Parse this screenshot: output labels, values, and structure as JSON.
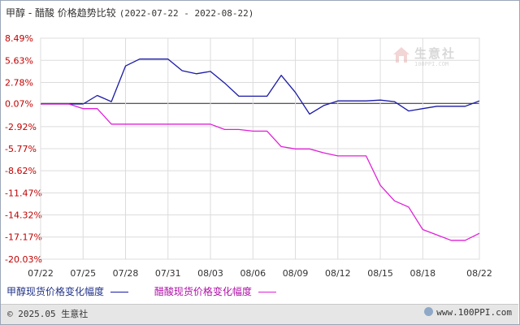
{
  "header": {
    "title": "甲醇 - 醋酸 价格趋势比较",
    "date_range": "(2022-07-22 - 2022-08-22)"
  },
  "watermark": {
    "name": "生意社",
    "url": "100PPI.COM"
  },
  "footer": {
    "copyright": "© 2025.05 生意社",
    "site": "www.100PPI.com"
  },
  "colors": {
    "series1": "#1a1aa6",
    "series2": "#e020d8",
    "grid": "#dcdcdc",
    "axis_label": "#c00000",
    "zero_line": "#222222"
  },
  "chart_data": {
    "type": "line",
    "x_tick_labels": [
      "07/22",
      "07/25",
      "07/28",
      "07/31",
      "08/03",
      "08/06",
      "08/09",
      "08/12",
      "08/15",
      "08/18",
      "08/22"
    ],
    "y_tick_labels": [
      "8.49%",
      "5.63%",
      "2.78%",
      "0.07%",
      "-2.92%",
      "-5.77%",
      "-8.62%",
      "-11.47%",
      "-14.32%",
      "-17.17%",
      "-20.03%"
    ],
    "y_tick_values": [
      8.49,
      5.63,
      2.78,
      0.07,
      -2.92,
      -5.77,
      -8.62,
      -11.47,
      -14.32,
      -17.17,
      -20.03
    ],
    "ylim": [
      -20.03,
      8.49
    ],
    "x": [
      "07/22",
      "07/23",
      "07/24",
      "07/25",
      "07/26",
      "07/27",
      "07/28",
      "07/29",
      "07/30",
      "07/31",
      "08/01",
      "08/02",
      "08/03",
      "08/04",
      "08/05",
      "08/06",
      "08/07",
      "08/08",
      "08/09",
      "08/10",
      "08/11",
      "08/12",
      "08/13",
      "08/14",
      "08/15",
      "08/16",
      "08/17",
      "08/18",
      "08/19",
      "08/20",
      "08/21",
      "08/22"
    ],
    "grid": true,
    "legend_position": "bottom",
    "series": [
      {
        "name": "甲醇现货价格变化幅度",
        "color": "#1a1aa6",
        "values": [
          0,
          0,
          0,
          0,
          1.1,
          0.3,
          4.9,
          5.8,
          5.8,
          5.8,
          4.3,
          3.9,
          4.2,
          2.7,
          1.0,
          1.0,
          1.0,
          3.7,
          1.5,
          -1.3,
          -0.2,
          0.4,
          0.4,
          0.4,
          0.5,
          0.3,
          -0.9,
          -0.6,
          -0.3,
          -0.3,
          -0.3,
          0.4
        ]
      },
      {
        "name": "醋酸现货价格变化幅度",
        "color": "#e020d8",
        "values": [
          0,
          0,
          0,
          -0.6,
          -0.6,
          -2.6,
          -2.6,
          -2.6,
          -2.6,
          -2.6,
          -2.6,
          -2.6,
          -2.6,
          -3.3,
          -3.3,
          -3.5,
          -3.5,
          -5.5,
          -5.8,
          -5.8,
          -6.3,
          -6.7,
          -6.7,
          -6.7,
          -10.5,
          -12.5,
          -13.3,
          -16.2,
          -16.9,
          -17.6,
          -17.6,
          -16.7
        ]
      }
    ]
  }
}
